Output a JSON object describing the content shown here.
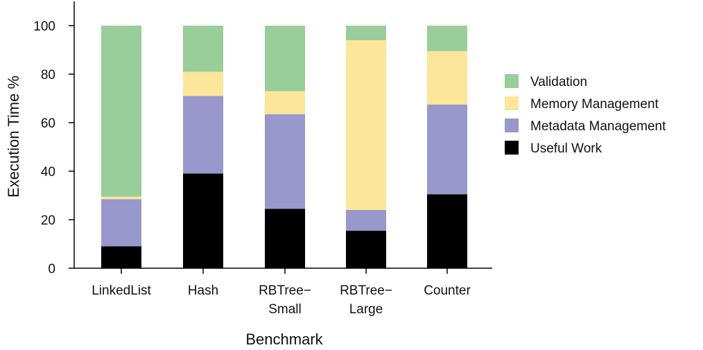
{
  "chart_data": {
    "type": "bar",
    "stacked": true,
    "title": "",
    "xlabel": "Benchmark",
    "ylabel": "Execution Time %",
    "ylim": [
      0,
      100
    ],
    "yticks": [
      0,
      20,
      40,
      60,
      80,
      100
    ],
    "grid": false,
    "legend_position": "right",
    "categories": [
      [
        "LinkedList"
      ],
      [
        "Hash"
      ],
      [
        "RBTree−",
        "Small"
      ],
      [
        "RBTree−",
        "Large"
      ],
      [
        "Counter"
      ]
    ],
    "series": [
      {
        "name": "Useful Work",
        "color": "#000000",
        "values": [
          9,
          39,
          24.5,
          15.5,
          30.5
        ]
      },
      {
        "name": "Metadata Management",
        "color": "#9898cc",
        "values": [
          19.5,
          32,
          39,
          8.5,
          37
        ]
      },
      {
        "name": "Memory Management",
        "color": "#fce699",
        "values": [
          1,
          10,
          9.5,
          70,
          22
        ]
      },
      {
        "name": "Validation",
        "color": "#99cd99",
        "values": [
          70.5,
          19,
          27,
          6,
          10.5
        ]
      }
    ],
    "legend_order": [
      "Validation",
      "Memory Management",
      "Metadata Management",
      "Useful Work"
    ]
  }
}
